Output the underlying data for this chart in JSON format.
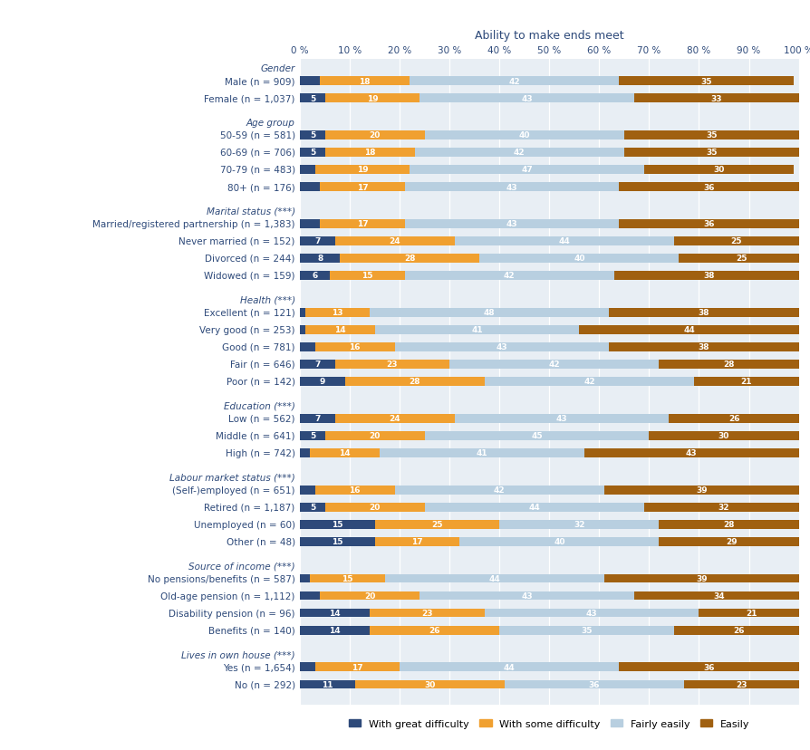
{
  "title": "Ability to make ends meet",
  "colors": {
    "great_difficulty": "#2e4a7a",
    "some_difficulty": "#f0a030",
    "fairly_easily": "#b8cfe0",
    "easily": "#a06010"
  },
  "legend_labels": [
    "With great difficulty",
    "With some difficulty",
    "Fairly easily",
    "Easily"
  ],
  "categories": [
    {
      "label": "Gender",
      "header": true,
      "values": null
    },
    {
      "label": "Male (n = 909)",
      "header": false,
      "values": [
        4,
        18,
        42,
        35
      ]
    },
    {
      "label": "Female (n = 1,037)",
      "header": false,
      "values": [
        5,
        19,
        43,
        33
      ]
    },
    {
      "label": "",
      "header": true,
      "values": null
    },
    {
      "label": "Age group",
      "header": true,
      "values": null
    },
    {
      "label": "50-59 (n = 581)",
      "header": false,
      "values": [
        5,
        20,
        40,
        35
      ]
    },
    {
      "label": "60-69 (n = 706)",
      "header": false,
      "values": [
        5,
        18,
        42,
        35
      ]
    },
    {
      "label": "70-79 (n = 483)",
      "header": false,
      "values": [
        3,
        19,
        47,
        30
      ]
    },
    {
      "label": "80+ (n = 176)",
      "header": false,
      "values": [
        4,
        17,
        43,
        36
      ]
    },
    {
      "label": "",
      "header": true,
      "values": null
    },
    {
      "label": "Marital status (***)",
      "header": true,
      "values": null
    },
    {
      "label": "Married/registered partnership (n = 1,383)",
      "header": false,
      "values": [
        4,
        17,
        43,
        36
      ]
    },
    {
      "label": "Never married (n = 152)",
      "header": false,
      "values": [
        7,
        24,
        44,
        25
      ]
    },
    {
      "label": "Divorced (n = 244)",
      "header": false,
      "values": [
        8,
        28,
        40,
        25
      ]
    },
    {
      "label": "Widowed (n = 159)",
      "header": false,
      "values": [
        6,
        15,
        42,
        38
      ]
    },
    {
      "label": "",
      "header": true,
      "values": null
    },
    {
      "label": "Health (***)",
      "header": true,
      "values": null
    },
    {
      "label": "Excellent (n = 121)",
      "header": false,
      "values": [
        1,
        13,
        48,
        38
      ]
    },
    {
      "label": "Very good (n = 253)",
      "header": false,
      "values": [
        1,
        14,
        41,
        44
      ]
    },
    {
      "label": "Good (n = 781)",
      "header": false,
      "values": [
        3,
        16,
        43,
        38
      ]
    },
    {
      "label": "Fair (n = 646)",
      "header": false,
      "values": [
        7,
        23,
        42,
        28
      ]
    },
    {
      "label": "Poor (n = 142)",
      "header": false,
      "values": [
        9,
        28,
        42,
        21
      ]
    },
    {
      "label": "",
      "header": true,
      "values": null
    },
    {
      "label": "Education (***)",
      "header": true,
      "values": null
    },
    {
      "label": "Low (n = 562)",
      "header": false,
      "values": [
        7,
        24,
        43,
        26
      ]
    },
    {
      "label": "Middle (n = 641)",
      "header": false,
      "values": [
        5,
        20,
        45,
        30
      ]
    },
    {
      "label": "High (n = 742)",
      "header": false,
      "values": [
        2,
        14,
        41,
        43
      ]
    },
    {
      "label": "",
      "header": true,
      "values": null
    },
    {
      "label": "Labour market status (***)",
      "header": true,
      "values": null
    },
    {
      "label": "(Self-)employed (n = 651)",
      "header": false,
      "values": [
        3,
        16,
        42,
        39
      ]
    },
    {
      "label": "Retired (n = 1,187)",
      "header": false,
      "values": [
        5,
        20,
        44,
        32
      ]
    },
    {
      "label": "Unemployed (n = 60)",
      "header": false,
      "values": [
        15,
        25,
        32,
        28
      ]
    },
    {
      "label": "Other (n = 48)",
      "header": false,
      "values": [
        15,
        17,
        40,
        29
      ]
    },
    {
      "label": "",
      "header": true,
      "values": null
    },
    {
      "label": "Source of income (***)",
      "header": true,
      "values": null
    },
    {
      "label": "No pensions/benefits (n = 587)",
      "header": false,
      "values": [
        2,
        15,
        44,
        39
      ]
    },
    {
      "label": "Old-age pension (n = 1,112)",
      "header": false,
      "values": [
        4,
        20,
        43,
        34
      ]
    },
    {
      "label": "Disability pension (n = 96)",
      "header": false,
      "values": [
        14,
        23,
        43,
        21
      ]
    },
    {
      "label": "Benefits (n = 140)",
      "header": false,
      "values": [
        14,
        26,
        35,
        26
      ]
    },
    {
      "label": "",
      "header": true,
      "values": null
    },
    {
      "label": "Lives in own house (***)",
      "header": true,
      "values": null
    },
    {
      "label": "Yes (n = 1,654)",
      "header": false,
      "values": [
        3,
        17,
        44,
        36
      ]
    },
    {
      "label": "No (n = 292)",
      "header": false,
      "values": [
        11,
        30,
        36,
        23
      ]
    }
  ],
  "bar_height": 0.52,
  "text_color": "#2e4a7a",
  "axis_color": "#2e4a7a",
  "bg_color": "#e8eef4"
}
